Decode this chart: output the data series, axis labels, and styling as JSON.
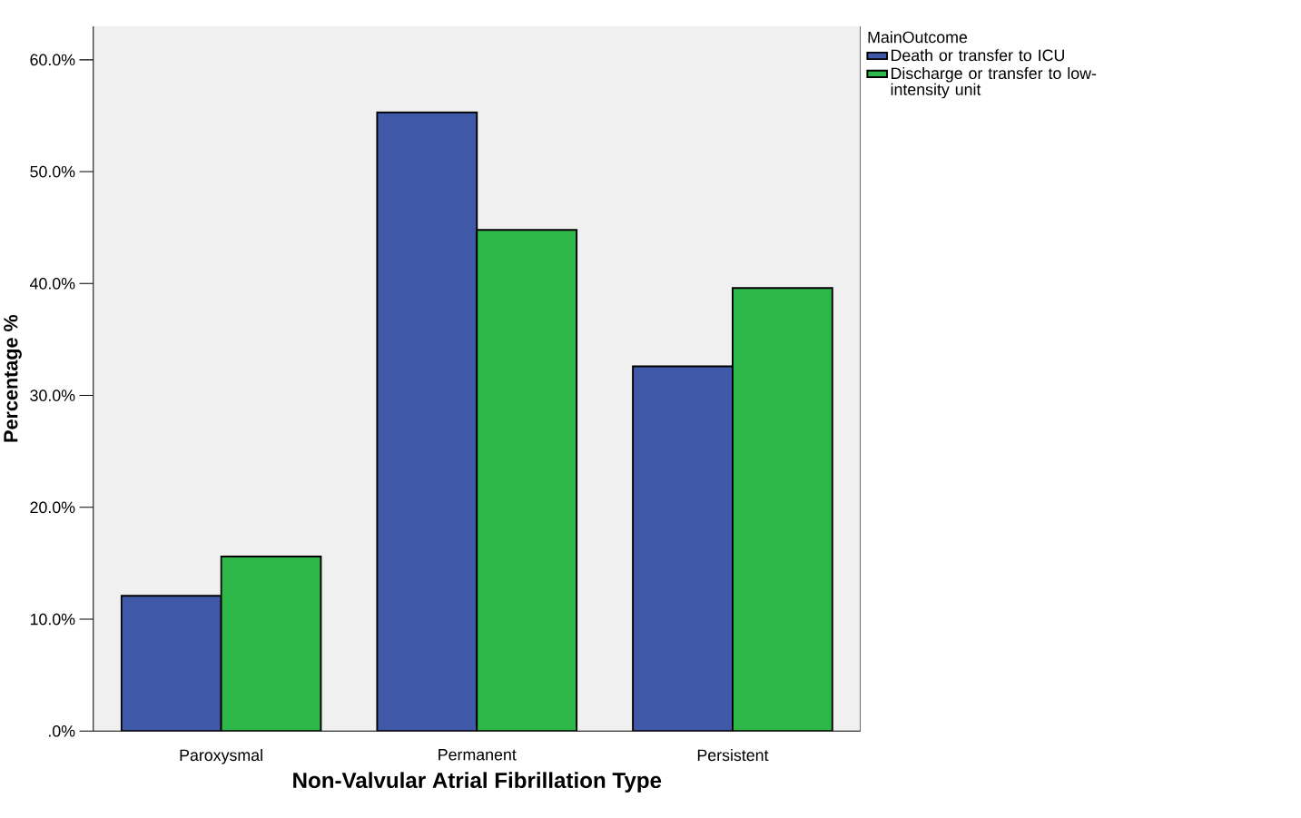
{
  "chart_data": {
    "type": "bar",
    "xlabel": "Non-Valvular Atrial Fibrillation Type",
    "ylabel": "Percentage %",
    "legend_title": "MainOutcome",
    "categories": [
      "Paroxysmal",
      "Permanent",
      "Persistent"
    ],
    "series": [
      {
        "name": "Death or transfer to ICU",
        "color": "#3f58a8",
        "values": [
          12.1,
          55.3,
          32.6
        ]
      },
      {
        "name": "Discharge or transfer to low-intensity unit",
        "color": "#2fb84a",
        "values": [
          15.6,
          44.8,
          39.6
        ]
      }
    ],
    "ylim": [
      0,
      63
    ],
    "yticks": [
      {
        "value": 0,
        "label": ".0%"
      },
      {
        "value": 10,
        "label": "10.0%"
      },
      {
        "value": 20,
        "label": "20.0%"
      },
      {
        "value": 30,
        "label": "30.0%"
      },
      {
        "value": 40,
        "label": "40.0%"
      },
      {
        "value": 50,
        "label": "50.0%"
      },
      {
        "value": 60,
        "label": "60.0%"
      }
    ],
    "legend": "right",
    "grid": false
  }
}
